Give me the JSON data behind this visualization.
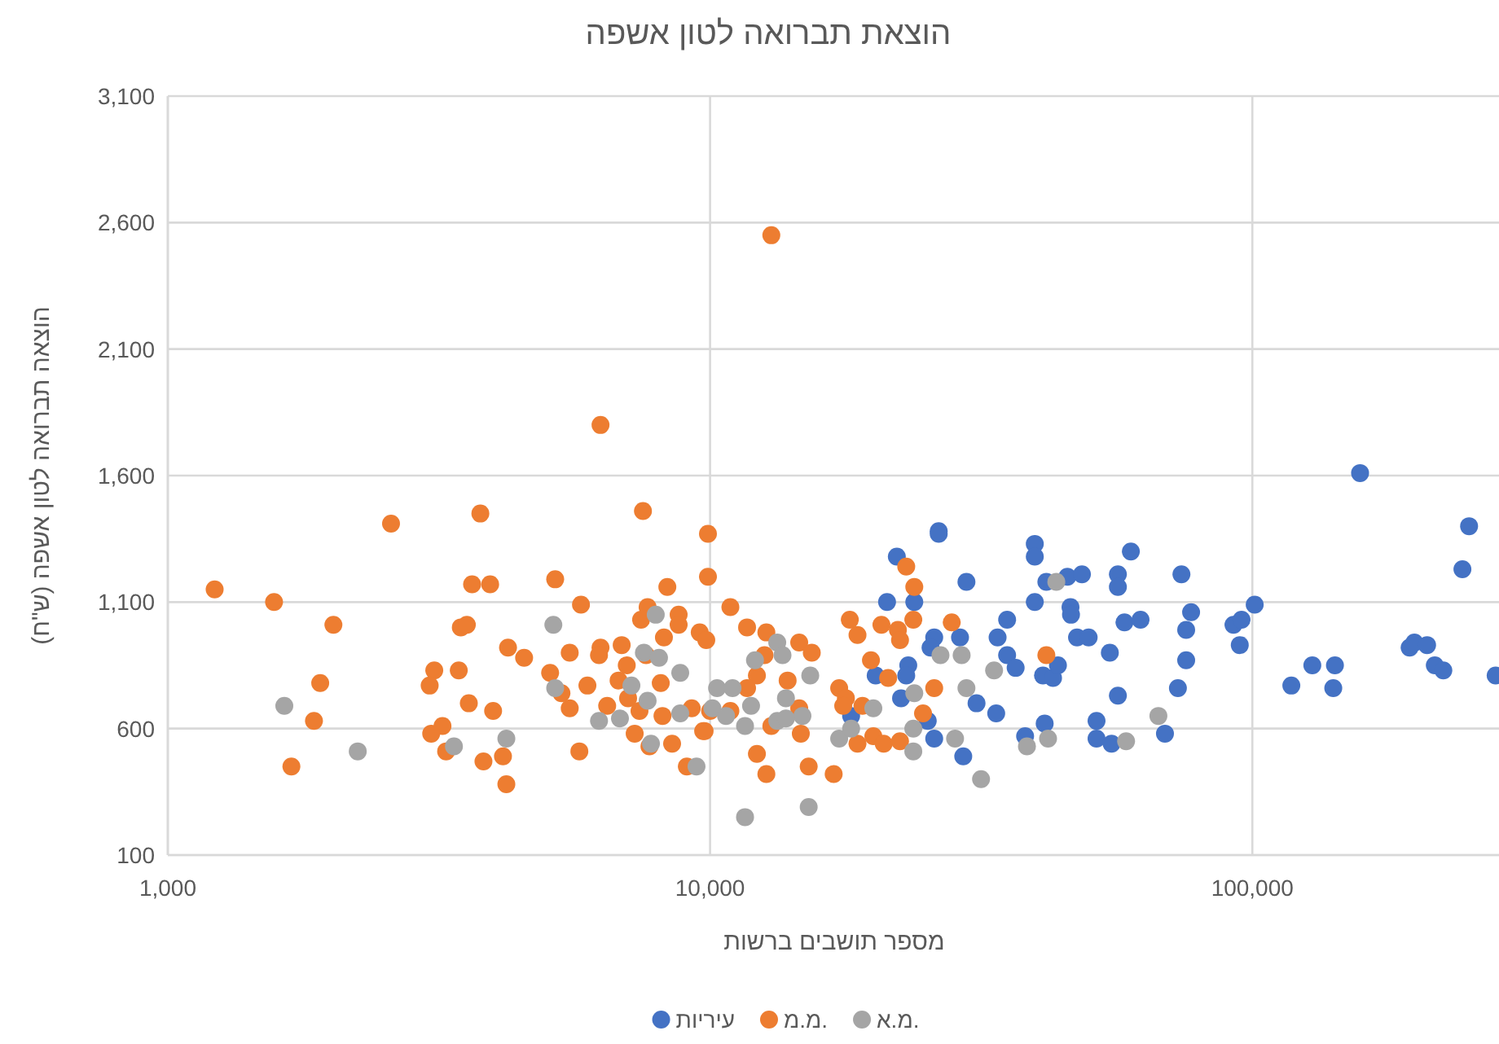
{
  "chart_data": {
    "type": "scatter",
    "title": "הוצאת תברואה לטון אשפה",
    "xlabel": "מספר תושבים ברשות",
    "ylabel": "הוצאה תברואה לטון אשפה (ש\"ח)",
    "log": "x",
    "grid": true,
    "legend": "bottom",
    "marker": "circle",
    "xlim": [
      1000,
      285000
    ],
    "ylim": [
      100,
      3100
    ],
    "xticks": [
      {
        "value": 1000,
        "label": "1,000"
      },
      {
        "value": 10000,
        "label": "10,000"
      },
      {
        "value": 100000,
        "label": "100,000"
      }
    ],
    "yticks": [
      100,
      600,
      {
        "value": 1100,
        "label": "1,100"
      },
      {
        "value": 1600,
        "label": "1,600"
      },
      {
        "value": 2100,
        "label": "2,100"
      },
      {
        "value": 2600,
        "label": "2,600"
      },
      {
        "value": 3100,
        "label": "3,100"
      }
    ],
    "series": [
      {
        "name": "עיריות",
        "color": "#4472c4",
        "x": [
          22100,
          26400,
          26400,
          29700,
          21200,
          23800,
          25900,
          25500,
          28900,
          23200,
          23000,
          20200,
          22500,
          18200,
          25200,
          25900,
          29300,
          31000,
          33700,
          33900,
          35300,
          35300,
          36600,
          39700,
          39700,
          39700,
          41700,
          45600,
          48500,
          46200,
          46300,
          47500,
          49900,
          41100,
          42900,
          43800,
          38100,
          41400,
          51600,
          51600,
          55000,
          54600,
          56500,
          56500,
          56500,
          58100,
          62200,
          59700,
          69000,
          72900,
          74000,
          77100,
          75500,
          75500,
          92300,
          95500,
          94800,
          101000,
          158000,
          251000,
          244000,
          118000,
          129000,
          142000,
          141000,
          195000,
          199000,
          210000,
          217000,
          225000,
          281000
        ],
        "values": [
          1280,
          1380,
          1370,
          1180,
          1100,
          1100,
          960,
          920,
          960,
          850,
          810,
          810,
          720,
          650,
          630,
          560,
          490,
          700,
          660,
          960,
          1030,
          890,
          840,
          1330,
          1280,
          1100,
          1180,
          1200,
          1210,
          1080,
          1050,
          960,
          960,
          810,
          800,
          850,
          570,
          620,
          630,
          560,
          540,
          900,
          730,
          1210,
          1160,
          1020,
          1030,
          1300,
          580,
          760,
          1210,
          1060,
          990,
          870,
          1010,
          1030,
          930,
          1090,
          1610,
          1400,
          1230,
          770,
          850,
          850,
          760,
          920,
          940,
          930,
          850,
          830,
          810
        ]
      },
      {
        "name": "מ.מ.",
        "color": "#ed7d31",
        "x": [
          1220,
          1570,
          2020,
          2580,
          1910,
          1860,
          1690,
          3770,
          3640,
          3930,
          3470,
          3560,
          3100,
          3040,
          3440,
          3590,
          3980,
          3210,
          3060,
          3260,
          3820,
          4150,
          4210,
          4240,
          4540,
          5180,
          6280,
          7520,
          5780,
          5070,
          5510,
          5320,
          5510,
          5740,
          5940,
          6280,
          6240,
          6870,
          7020,
          6780,
          6460,
          7060,
          7260,
          7460,
          7670,
          8340,
          8220,
          8750,
          8750,
          8110,
          7620,
          7410,
          8170,
          7730,
          8510,
          9250,
          9710,
          9060,
          9570,
          9840,
          9910,
          9910,
          12970,
          10900,
          11700,
          12700,
          12600,
          14600,
          15400,
          12200,
          11700,
          13900,
          10900,
          10000,
          9770,
          12970,
          14700,
          14600,
          12200,
          12700,
          15200,
          16900,
          18100,
          18700,
          17300,
          17800,
          17600,
          19100,
          20000,
          18700,
          20900,
          22400,
          19800,
          20700,
          22200,
          22400,
          21300,
          23000,
          23800,
          23700,
          24700,
          25900,
          27900,
          41700
        ],
        "values": [
          1150,
          1100,
          1010,
          1410,
          780,
          630,
          450,
          1450,
          1170,
          1170,
          1000,
          1010,
          830,
          770,
          830,
          700,
          670,
          610,
          580,
          510,
          470,
          490,
          380,
          920,
          880,
          1190,
          1800,
          1460,
          1090,
          820,
          900,
          740,
          680,
          510,
          770,
          920,
          890,
          930,
          850,
          790,
          690,
          720,
          580,
          1030,
          1080,
          1160,
          960,
          1050,
          1010,
          780,
          890,
          670,
          650,
          530,
          540,
          680,
          590,
          450,
          980,
          950,
          1370,
          1200,
          2550,
          1080,
          1000,
          980,
          890,
          940,
          900,
          810,
          760,
          790,
          670,
          670,
          590,
          610,
          580,
          680,
          500,
          420,
          450,
          420,
          1030,
          970,
          760,
          720,
          690,
          690,
          570,
          540,
          540,
          550,
          870,
          1010,
          990,
          950,
          800,
          1240,
          1160,
          1030,
          660,
          760,
          1020,
          890
        ]
      },
      {
        "name": "מ.א.",
        "color": "#a5a5a5",
        "x": [
          1640,
          2240,
          3370,
          4210,
          5140,
          5180,
          6240,
          6820,
          7160,
          7670,
          7550,
          8050,
          7940,
          7780,
          8810,
          8810,
          9440,
          10100,
          10300,
          11000,
          10700,
          12100,
          13300,
          13600,
          11900,
          13800,
          13300,
          14800,
          13800,
          15300,
          11600,
          11600,
          15200,
          17300,
          18200,
          20000,
          23800,
          23700,
          23700,
          26600,
          29100,
          29700,
          28300,
          31600,
          33400,
          38400,
          42000,
          43500,
          58500,
          67100
        ],
        "values": [
          690,
          510,
          530,
          560,
          1010,
          760,
          630,
          640,
          770,
          710,
          900,
          880,
          1050,
          540,
          820,
          660,
          450,
          680,
          760,
          760,
          650,
          870,
          940,
          890,
          690,
          720,
          630,
          650,
          640,
          810,
          610,
          250,
          290,
          560,
          600,
          680,
          740,
          600,
          510,
          890,
          890,
          760,
          560,
          400,
          830,
          530,
          560,
          1180,
          550,
          650
        ]
      }
    ]
  }
}
